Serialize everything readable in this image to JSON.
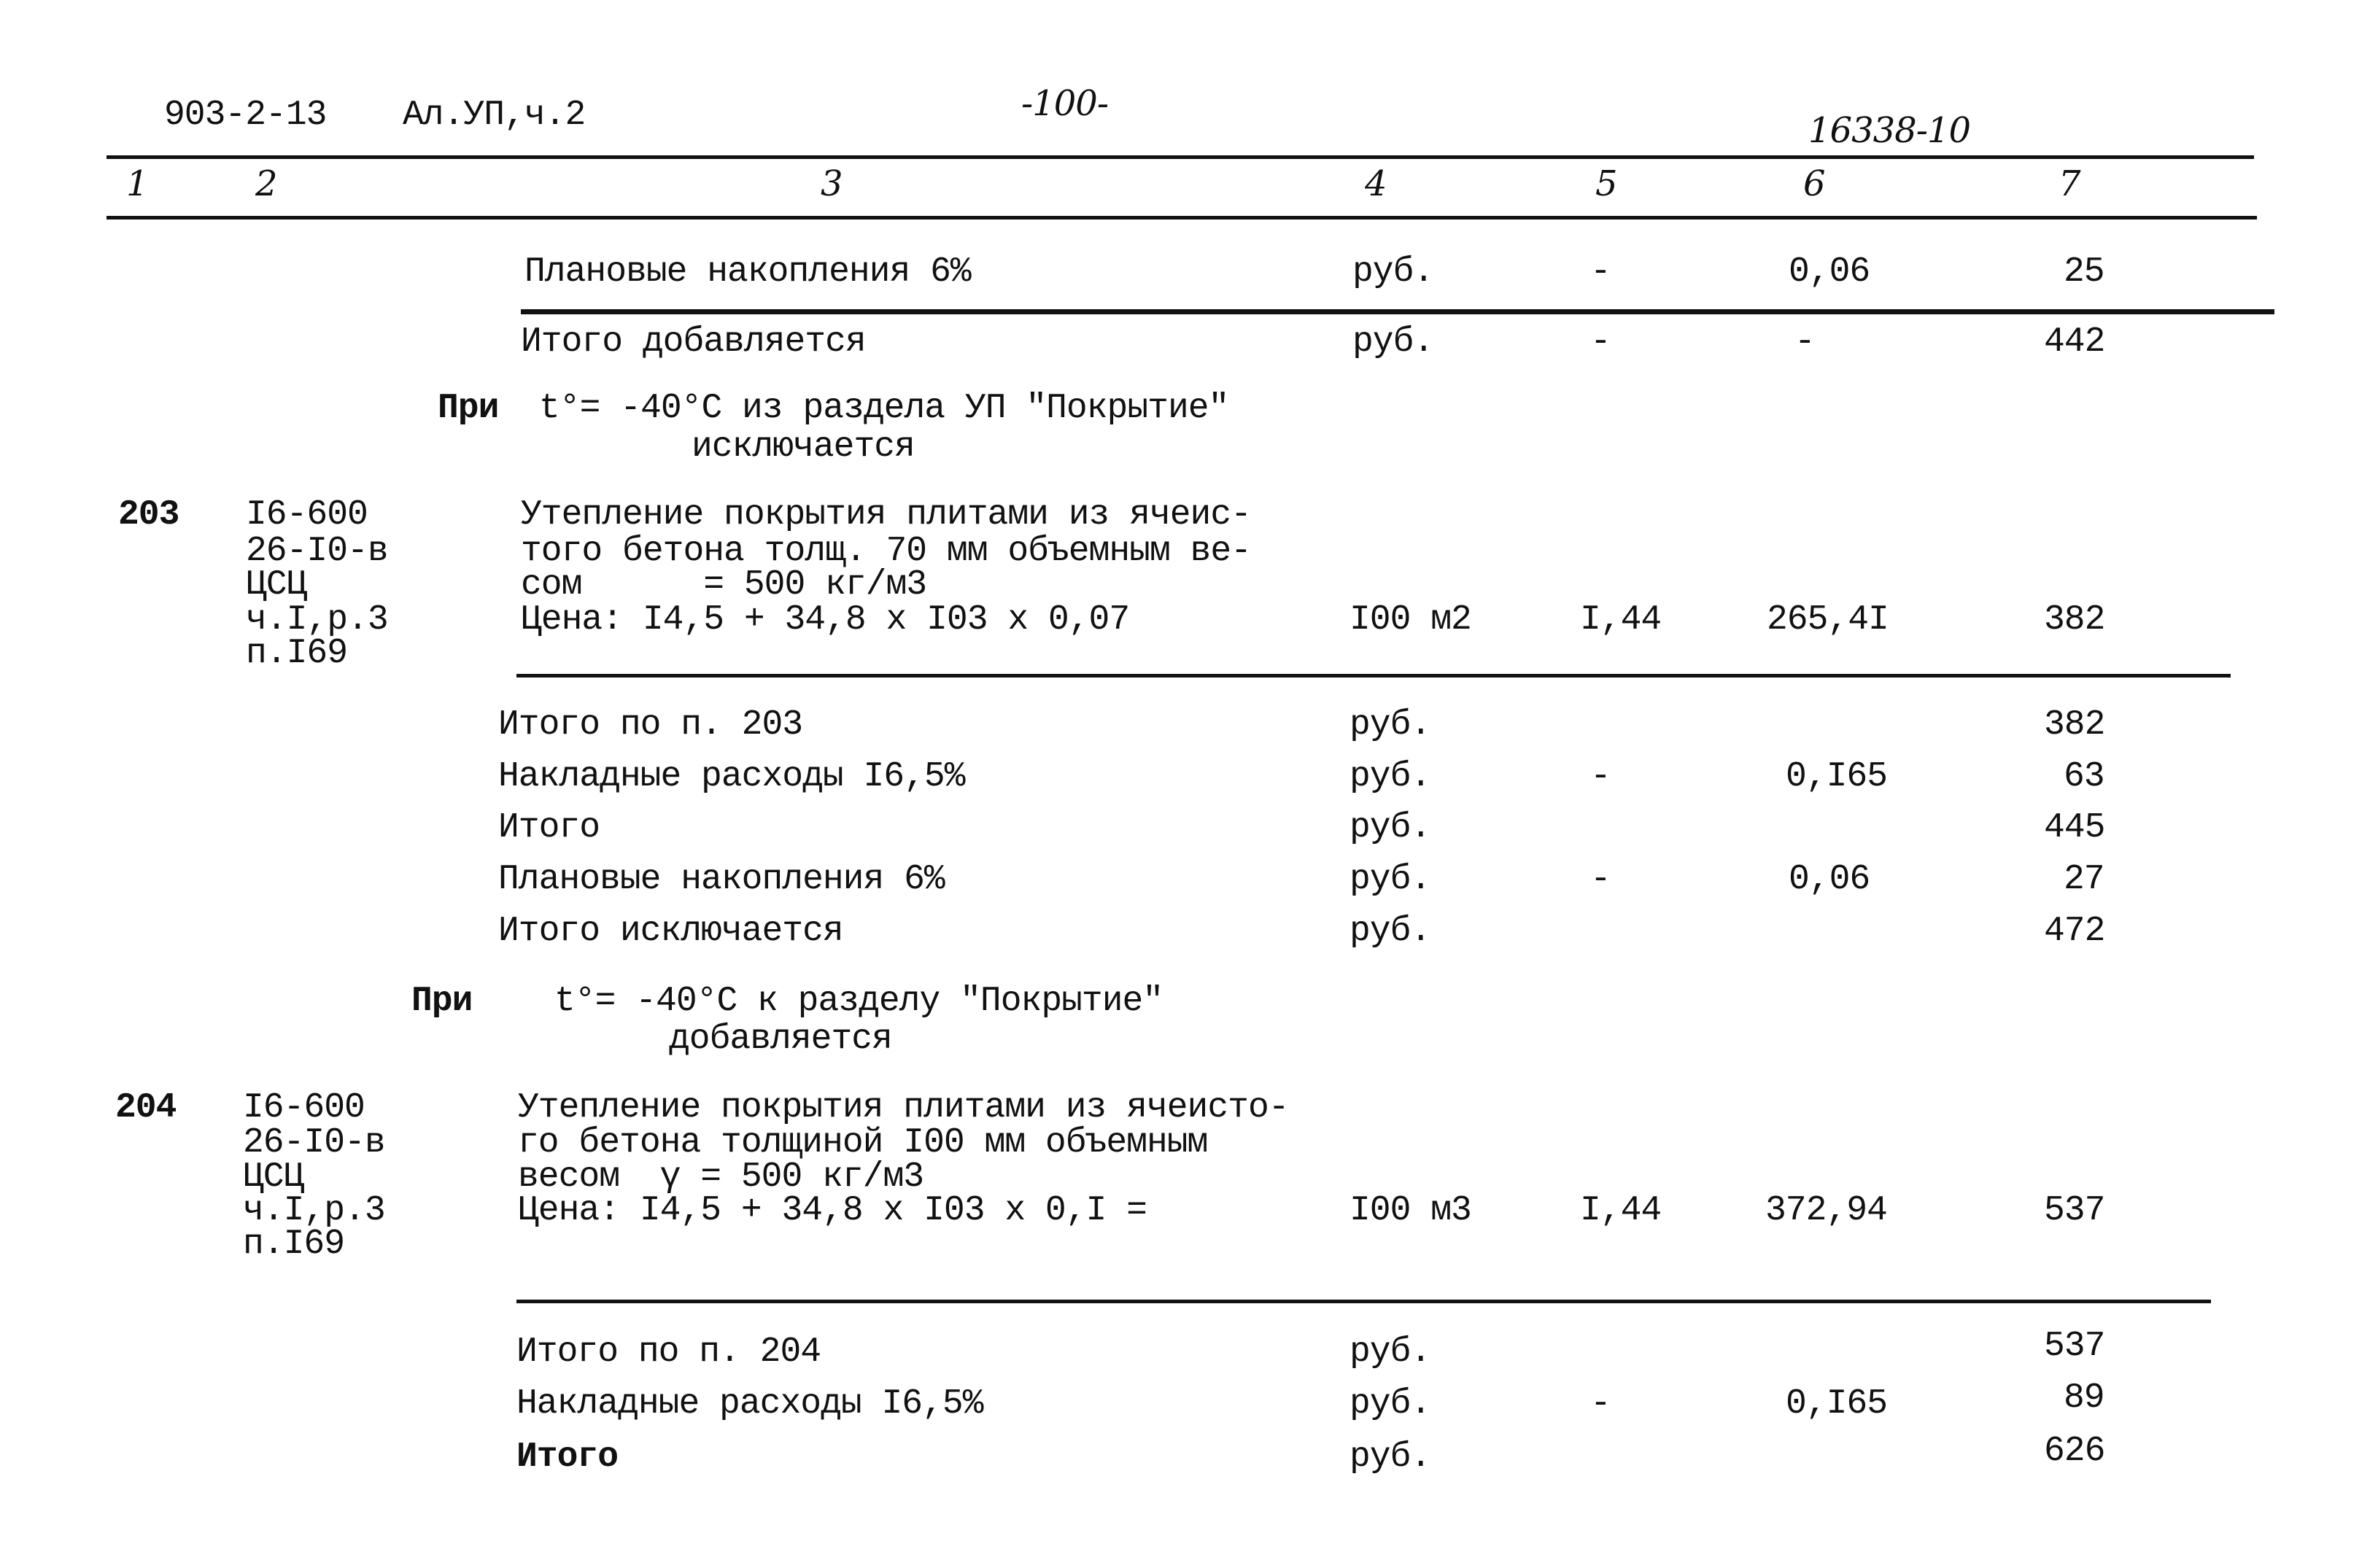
{
  "header": {
    "doc_code": "903-2-13",
    "album": "Ал.УП,ч.2",
    "page_number": "-100-",
    "project_number": "16338-10"
  },
  "columns": [
    "1",
    "2",
    "3",
    "4",
    "5",
    "6",
    "7"
  ],
  "rows_top": [
    {
      "text": "Плановые накопления 6%",
      "unit": "руб.",
      "coef": "-",
      "rate": "0,06",
      "amount": "25"
    },
    {
      "text": "Итого добавляется",
      "unit": "руб.",
      "coef": "-",
      "rate": "-",
      "amount": "442"
    }
  ],
  "note1": {
    "prefix": "При",
    "line1": "t°= -40°С из раздела УП \"Покрытие\"",
    "line2": "исключается"
  },
  "item203": {
    "number": "203",
    "ref": [
      "I6-600",
      "26-I0-в",
      "ЦСЦ",
      "ч.I,р.3",
      "п.I69"
    ],
    "desc": [
      "Утепление покрытия плитами из ячеис-",
      "того бетона толщ. 70 мм объемным ве-",
      "сом      = 500 кг/м3",
      "Цена: I4,5 + 34,8 x I03 x 0,07"
    ],
    "unit": "I00 м2",
    "coef": "I,44",
    "rate": "265,4I",
    "amount": "382"
  },
  "totals203": [
    {
      "text": "Итого по п. 203",
      "unit": "руб.",
      "coef": "",
      "rate": "",
      "amount": "382"
    },
    {
      "text": "Накладные расходы I6,5%",
      "unit": "руб.",
      "coef": "-",
      "rate": "0,I65",
      "amount": "63"
    },
    {
      "text": "Итого",
      "unit": "руб.",
      "coef": "",
      "rate": "",
      "amount": "445"
    },
    {
      "text": "Плановые накопления 6%",
      "unit": "руб.",
      "coef": "-",
      "rate": "0,06",
      "amount": "27"
    },
    {
      "text": "Итого исключается",
      "unit": "руб.",
      "coef": "",
      "rate": "",
      "amount": "472"
    }
  ],
  "note2": {
    "prefix": "При",
    "line1": "t°= -40°С к разделу \"Покрытие\"",
    "line2": "добавляется"
  },
  "item204": {
    "number": "204",
    "ref": [
      "I6-600",
      "26-I0-в",
      "ЦСЦ",
      "ч.I,р.3",
      "п.I69"
    ],
    "desc": [
      "Утепление покрытия плитами из ячеисто-",
      "го бетона толщиной I00 мм объемным",
      "весом  γ = 500 кг/м3",
      "Цена: I4,5 + 34,8 x I03 x 0,I ="
    ],
    "unit": "I00 м3",
    "coef": "I,44",
    "rate": "372,94",
    "amount": "537"
  },
  "totals204": [
    {
      "text": "Итого по п. 204",
      "unit": "руб.",
      "coef": "",
      "rate": "",
      "amount": "537"
    },
    {
      "text": "Накладные расходы I6,5%",
      "unit": "руб.",
      "coef": "-",
      "rate": "0,I65",
      "amount": "89"
    },
    {
      "text": "Итого",
      "unit": "руб.",
      "coef": "",
      "rate": "",
      "amount": "626"
    }
  ]
}
